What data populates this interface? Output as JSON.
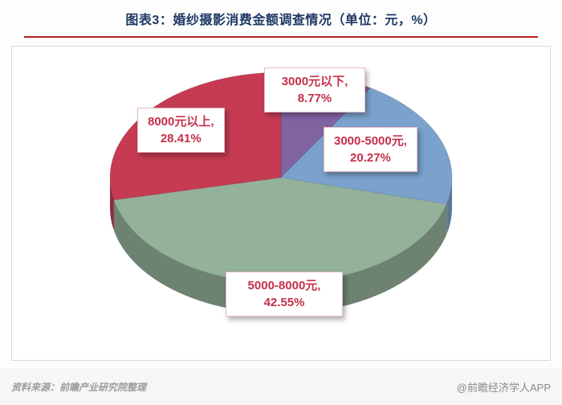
{
  "header": {
    "title": "图表3：婚纱摄影消费金额调查情况（单位：元，%）"
  },
  "chart_data": {
    "type": "pie",
    "style": "3d-pie",
    "title": "图表3：婚纱摄影消费金额调查情况（单位：元，%）",
    "unit": "元，%",
    "labels": [
      "3000元以下",
      "3000-5000元",
      "5000-8000元",
      "8000元以上"
    ],
    "values": [
      8.77,
      20.27,
      42.55,
      28.41
    ],
    "colors": [
      "#8064a2",
      "#7aa2cd",
      "#94b19a",
      "#c63a52"
    ],
    "direction": "clockwise",
    "start_angle_deg": 0,
    "legend": "none",
    "callouts": [
      {
        "line1": "3000元以下,",
        "line2": "8.77%"
      },
      {
        "line1": "3000-5000元,",
        "line2": "20.27%"
      },
      {
        "line1": "5000-8000元,",
        "line2": "42.55%"
      },
      {
        "line1": "8000元以上,",
        "line2": "28.41%"
      }
    ]
  },
  "footer": {
    "source": "资料来源：前瞻产业研究院整理",
    "watermark": "@前瞻经济学人APP"
  }
}
